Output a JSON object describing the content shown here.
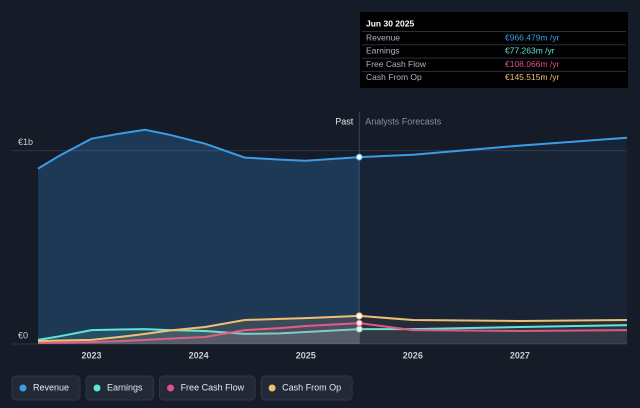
{
  "chart_data": {
    "type": "line",
    "x": [
      2022.5,
      2022.7,
      2023.0,
      2023.26,
      2023.5,
      2023.73,
      2024.06,
      2024.43,
      2024.76,
      2025.0,
      2025.5,
      2026.0,
      2027.0,
      2028.0
    ],
    "xlim": [
      2022.5,
      2028.0
    ],
    "xticks": [
      2023,
      2024,
      2025,
      2026,
      2027
    ],
    "ylim": [
      0,
      1200
    ],
    "yticks": [
      {
        "value": 0,
        "label": "€0"
      },
      {
        "value": 1000,
        "label": "€1b"
      }
    ],
    "annotations": {
      "past": "Past",
      "forecast": "Analysts Forecasts"
    },
    "tooltip_title": "Jun 30 2025",
    "series": [
      {
        "name": "Revenue",
        "color": "#3b9ce8",
        "values": [
          907,
          974,
          1062,
          1088,
          1108,
          1082,
          1036,
          964,
          954,
          948,
          966.479,
          979,
          1026,
          1067
        ],
        "value_labels": [
          null,
          null,
          null,
          null,
          null,
          null,
          null,
          null,
          null,
          null,
          "€966.479m /yr",
          null,
          null,
          null
        ]
      },
      {
        "name": "Earnings",
        "color": "#5ee6d6",
        "values": [
          21,
          40,
          72,
          75,
          77,
          72,
          67,
          52,
          55,
          62,
          77.263,
          77,
          88,
          98
        ],
        "value_labels": [
          null,
          null,
          null,
          null,
          null,
          null,
          null,
          null,
          null,
          null,
          "€77.263m /yr",
          null,
          null,
          null
        ]
      },
      {
        "name": "Free Cash Flow",
        "color": "#e0508a",
        "values": [
          5,
          7,
          10,
          15,
          21,
          28,
          36,
          72,
          82,
          93,
          108.066,
          72,
          67,
          72
        ],
        "value_labels": [
          null,
          null,
          null,
          null,
          null,
          null,
          null,
          null,
          null,
          null,
          "€108.066m /yr",
          null,
          null,
          null
        ]
      },
      {
        "name": "Cash From Op",
        "color": "#f0c070",
        "values": [
          15,
          18,
          21,
          36,
          52,
          70,
          88,
          124,
          130,
          134,
          145.515,
          124,
          119,
          124
        ],
        "value_labels": [
          null,
          null,
          null,
          null,
          null,
          null,
          null,
          null,
          null,
          null,
          "€145.515m /yr",
          null,
          null,
          null
        ]
      }
    ]
  }
}
